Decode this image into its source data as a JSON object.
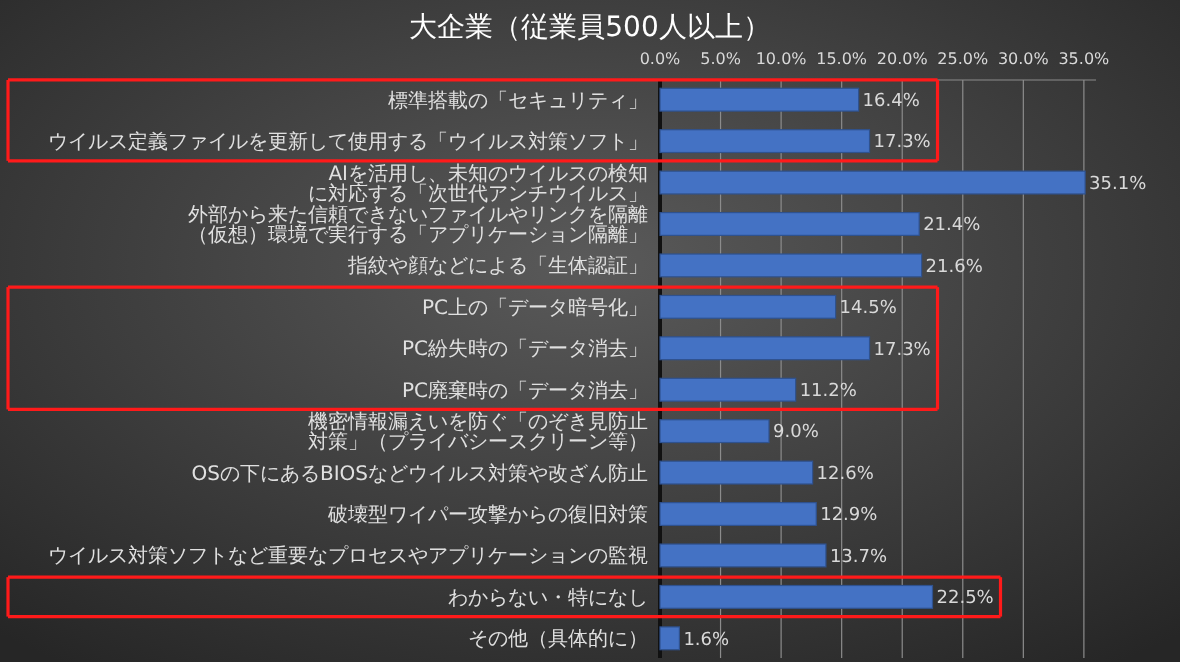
{
  "chart_data": {
    "type": "bar",
    "orientation": "horizontal",
    "title": "大企業（従業員500人以上）",
    "categories": [
      "標準搭載の「セキュリティ」",
      "ウイルス定義ファイルを更新して使用する「ウイルス対策ソフト」",
      "AIを活用し、未知のウイルスの検知に対応する「次世代アンチウイルス」",
      "外部から来た信頼できないファイルやリンクを隔離（仮想）環境で実行する「アプリケーション隔離」",
      "指紋や顔などによる「生体認証」",
      "PC上の「データ暗号化」",
      "PC紛失時の「データ消去」",
      "PC廃棄時の「データ消去」",
      "機密情報漏えいを防ぐ「のぞき見防止対策」（プライバシースクリーン等）",
      "OSの下にあるBIOSなどウイルス対策や改ざん防止",
      "破壊型ワイパー攻撃からの復旧対策",
      "ウイルス対策ソフトなど重要なプロセスやアプリケーションの監視",
      "わからない・特になし",
      "その他（具体的に）"
    ],
    "values": [
      16.4,
      17.3,
      35.1,
      21.4,
      21.6,
      14.5,
      17.3,
      11.2,
      9.0,
      12.6,
      12.9,
      13.7,
      22.5,
      1.6
    ],
    "value_labels": [
      "16.4%",
      "17.3%",
      "35.1%",
      "21.4%",
      "21.6%",
      "14.5%",
      "17.3%",
      "11.2%",
      "9.0%",
      "12.6%",
      "12.9%",
      "13.7%",
      "22.5%",
      "1.6%"
    ],
    "color": "#4472c4",
    "xlim": [
      0,
      36
    ],
    "xticks": [
      {
        "value": 0,
        "label": "0.0%"
      },
      {
        "value": 5,
        "label": "5.0%"
      },
      {
        "value": 10,
        "label": "10.0%"
      },
      {
        "value": 15,
        "label": "15.0%"
      },
      {
        "value": 20,
        "label": "20.0%"
      },
      {
        "value": 25,
        "label": "25.0%"
      },
      {
        "value": 30,
        "label": "30.0%"
      },
      {
        "value": 35,
        "label": "35.0%"
      }
    ],
    "grid": "x"
  }
}
